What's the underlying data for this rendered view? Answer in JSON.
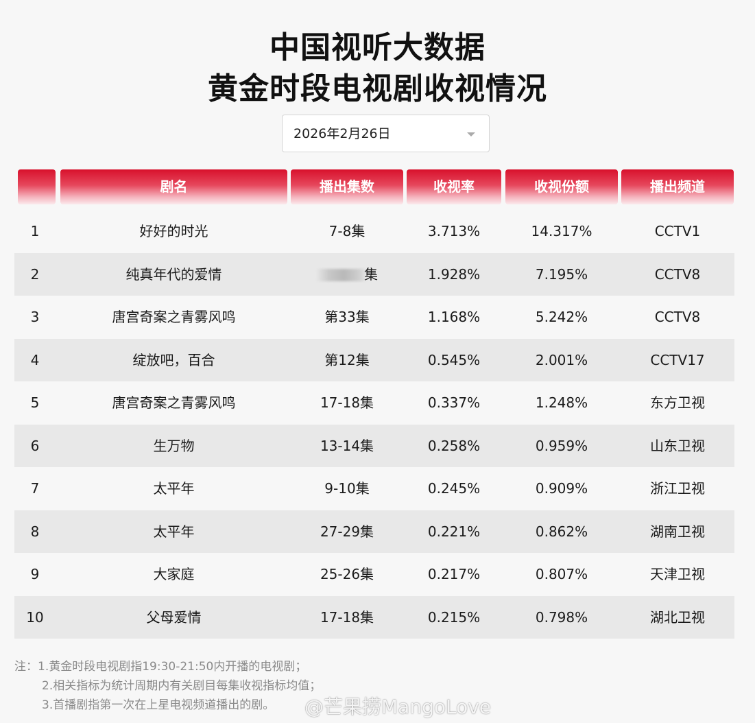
{
  "title_line1": "中国视听大数据",
  "title_line2": "黄金时段电视剧收视情况",
  "date_select": {
    "value": "2026年2月26日",
    "icon": "chevron-down-icon"
  },
  "table": {
    "headers": [
      "",
      "剧名",
      "播出集数",
      "收视率",
      "收视份额",
      "播出频道"
    ],
    "rows": [
      {
        "rank": "1",
        "name": "好好的时光",
        "episodes": "7-8集",
        "rating": "3.713%",
        "share": "14.317%",
        "channel": "CCTV1"
      },
      {
        "rank": "2",
        "name": "纯真年代的爱情",
        "episodes": "集",
        "rating": "1.928%",
        "share": "7.195%",
        "channel": "CCTV8"
      },
      {
        "rank": "3",
        "name": "唐宫奇案之青雾风鸣",
        "episodes": "第33集",
        "rating": "1.168%",
        "share": "5.242%",
        "channel": "CCTV8"
      },
      {
        "rank": "4",
        "name": "绽放吧，百合",
        "episodes": "第12集",
        "rating": "0.545%",
        "share": "2.001%",
        "channel": "CCTV17"
      },
      {
        "rank": "5",
        "name": "唐宫奇案之青雾风鸣",
        "episodes": "17-18集",
        "rating": "0.337%",
        "share": "1.248%",
        "channel": "东方卫视"
      },
      {
        "rank": "6",
        "name": "生万物",
        "episodes": "13-14集",
        "rating": "0.258%",
        "share": "0.959%",
        "channel": "山东卫视"
      },
      {
        "rank": "7",
        "name": "太平年",
        "episodes": "9-10集",
        "rating": "0.245%",
        "share": "0.909%",
        "channel": "浙江卫视"
      },
      {
        "rank": "8",
        "name": "太平年",
        "episodes": "27-29集",
        "rating": "0.221%",
        "share": "0.862%",
        "channel": "湖南卫视"
      },
      {
        "rank": "9",
        "name": "大家庭",
        "episodes": "25-26集",
        "rating": "0.217%",
        "share": "0.807%",
        "channel": "天津卫视"
      },
      {
        "rank": "10",
        "name": "父母爱情",
        "episodes": "17-18集",
        "rating": "0.215%",
        "share": "0.798%",
        "channel": "湖北卫视"
      }
    ]
  },
  "notes": {
    "line1": "注：1.黄金时段电视剧指19:30-21:50内开播的电视剧；",
    "line2": "2.相关指标为统计周期内有关剧目每集收视指标均值；",
    "line3": "3.首播剧指第一次在上星电视频道播出的剧。"
  },
  "watermark": "@芒果捞MangoLove",
  "colors": {
    "header_red": "#d8112c",
    "row_alt": "#e8e8e8",
    "background": "#f7f7f7"
  }
}
